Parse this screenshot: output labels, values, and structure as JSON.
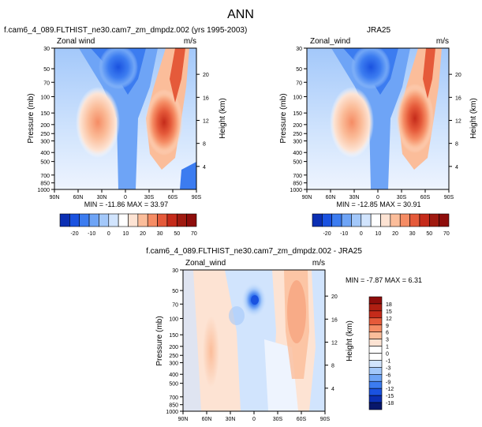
{
  "title": "ANN",
  "colors": {
    "blue_palette": [
      "#08176b",
      "#0b2fb3",
      "#1a52e0",
      "#3c7cf0",
      "#6ea4f6",
      "#a3c8fa",
      "#d1e4fd",
      "#ffffff",
      "#fde3d3",
      "#fbbd9a",
      "#f58c64",
      "#e55a3a",
      "#c52b1a",
      "#8e0d0b"
    ],
    "panel_border": "#000000"
  },
  "chart_data": [
    {
      "type": "heatmap",
      "panel": "top-left",
      "title": "f.cam6_4_089.FLTHIST_ne30.cam7_zm_dmpdz.002 (yrs 1995-2003)",
      "left_label": "Zonal wind",
      "right_label": "m/s",
      "xlabel": "",
      "ylabel": "Pressure (mb)",
      "ylabel_right": "Height (km)",
      "x_ticks": [
        "90N",
        "60N",
        "30N",
        "0",
        "30S",
        "60S",
        "90S"
      ],
      "y_ticks": [
        "30",
        "50",
        "70",
        "100",
        "150",
        "200",
        "250",
        "300",
        "400",
        "500",
        "700",
        "850",
        "1000"
      ],
      "y_ticks_right": [
        "20",
        "16",
        "12",
        "8",
        "4"
      ],
      "stats": "MIN = -11.86   MAX = 33.97",
      "min": -11.86,
      "max": 33.97,
      "colorbar_levels": [
        "-20",
        "-10",
        "0",
        "10",
        "20",
        "30",
        "50",
        "70"
      ],
      "features": [
        {
          "lat": -35,
          "p": 200,
          "value": 34
        },
        {
          "lat": 25,
          "p": 200,
          "value": 22
        },
        {
          "lat": 5,
          "p": 70,
          "value": -11
        }
      ]
    },
    {
      "type": "heatmap",
      "panel": "top-right",
      "title": "JRA25",
      "left_label": "Zonal_wind",
      "right_label": "m/s",
      "xlabel": "",
      "ylabel": "Pressure (mb)",
      "ylabel_right": "Height (km)",
      "x_ticks": [
        "90N",
        "60N",
        "30N",
        "0",
        "30S",
        "60S",
        "90S"
      ],
      "y_ticks": [
        "30",
        "50",
        "70",
        "100",
        "150",
        "200",
        "250",
        "300",
        "400",
        "500",
        "700",
        "850",
        "1000"
      ],
      "y_ticks_right": [
        "20",
        "16",
        "12",
        "8",
        "4"
      ],
      "stats": "MIN = -12.85   MAX = 30.91",
      "min": -12.85,
      "max": 30.91,
      "colorbar_levels": [
        "-20",
        "-10",
        "0",
        "10",
        "20",
        "30",
        "50",
        "70"
      ],
      "features": [
        {
          "lat": -35,
          "p": 200,
          "value": 31
        },
        {
          "lat": 25,
          "p": 200,
          "value": 20
        },
        {
          "lat": 5,
          "p": 70,
          "value": -12
        }
      ]
    },
    {
      "type": "heatmap",
      "panel": "bottom",
      "title": "f.cam6_4_089.FLTHIST_ne30.cam7_zm_dmpdz.002 - JRA25",
      "left_label": "Zonal_wind",
      "right_label": "m/s",
      "xlabel": "",
      "ylabel": "Pressure (mb)",
      "ylabel_right": "Height (km)",
      "x_ticks": [
        "90N",
        "60N",
        "30N",
        "0",
        "30S",
        "60S",
        "90S"
      ],
      "y_ticks": [
        "30",
        "50",
        "70",
        "100",
        "150",
        "200",
        "250",
        "300",
        "400",
        "500",
        "700",
        "850",
        "1000"
      ],
      "y_ticks_right": [
        "20",
        "16",
        "12",
        "8",
        "4"
      ],
      "stats": "MIN = -7.87   MAX =  6.31",
      "min": -7.87,
      "max": 6.31,
      "colorbar_levels": [
        "18",
        "15",
        "12",
        "9",
        "6",
        "3",
        "1",
        "0",
        "-1",
        "-3",
        "-6",
        "-9",
        "-12",
        "-15",
        "-18"
      ],
      "features": [
        {
          "lat": 0,
          "p": 70,
          "value": -7.9
        },
        {
          "lat": -50,
          "p": 70,
          "value": 6.3
        },
        {
          "lat": 50,
          "p": 150,
          "value": 3
        }
      ]
    }
  ]
}
